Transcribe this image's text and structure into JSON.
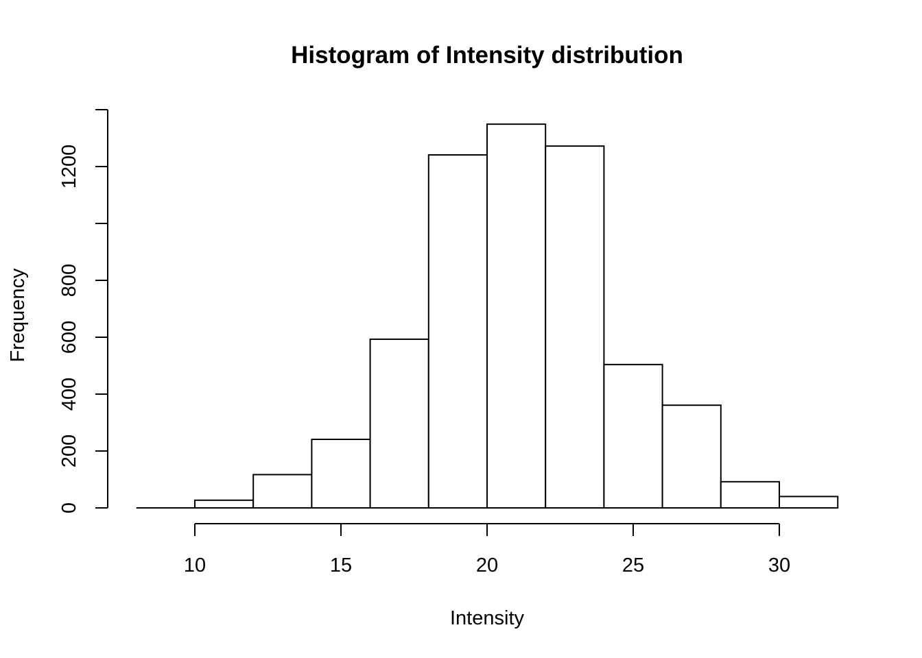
{
  "chart_data": {
    "type": "bar",
    "title": "Histogram of Intensity distribution",
    "xlabel": "Intensity",
    "ylabel": "Frequency",
    "bin_edges": [
      8,
      10,
      12,
      14,
      16,
      18,
      20,
      22,
      24,
      26,
      28,
      30,
      32
    ],
    "values": [
      0,
      27,
      117,
      241,
      593,
      1241,
      1349,
      1272,
      504,
      361,
      92,
      40
    ],
    "xlim": [
      8,
      32
    ],
    "ylim": [
      0,
      1400
    ],
    "x_ticks": [
      10,
      15,
      20,
      25,
      30
    ],
    "x_tick_labels": [
      "10",
      "15",
      "20",
      "25",
      "30"
    ],
    "y_ticks": [
      0,
      200,
      400,
      600,
      800,
      1000,
      1200,
      1400
    ],
    "y_tick_labels": [
      "0",
      "200",
      "400",
      "600",
      "800",
      "",
      "1200",
      ""
    ],
    "grid": false,
    "legend": "none",
    "bar_fill": "#ffffff",
    "bar_stroke": "#000000"
  }
}
